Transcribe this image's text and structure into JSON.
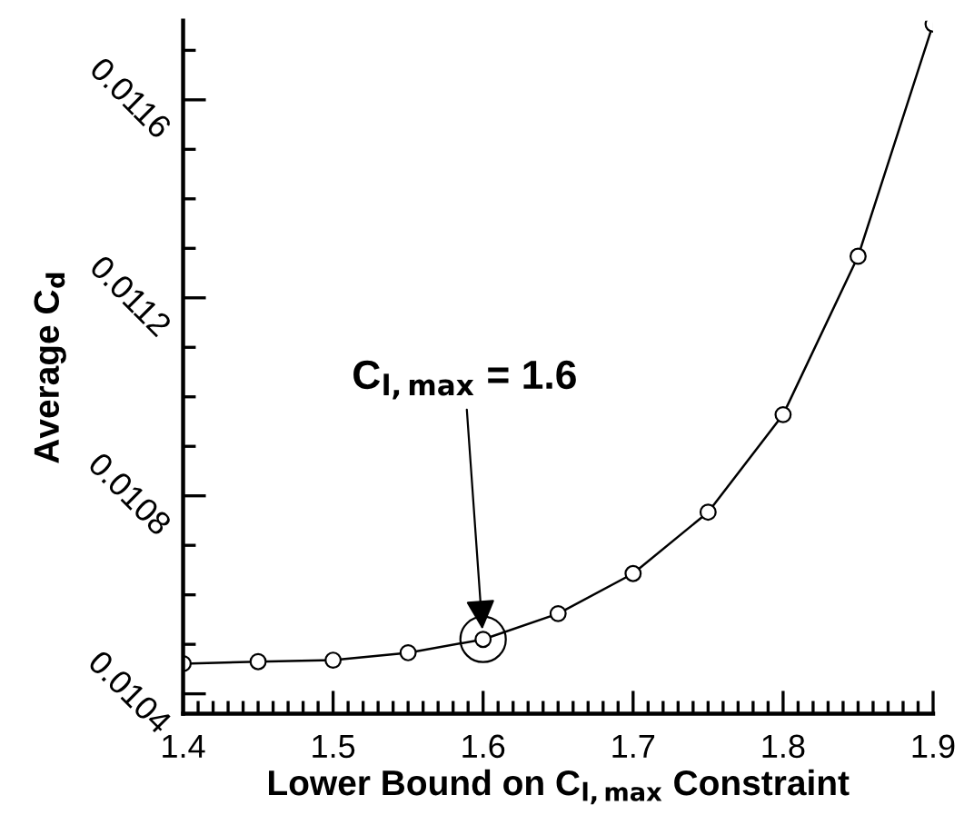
{
  "chart_data": {
    "type": "line",
    "xlabel": "Lower Bound on C$_{l,max}$ Constraint",
    "ylabel": "Average C$_{d}$",
    "x": [
      1.4,
      1.45,
      1.5,
      1.55,
      1.6,
      1.65,
      1.7,
      1.75,
      1.8,
      1.85,
      1.9
    ],
    "series": [
      {
        "color": "#000000",
        "values": [
          0.010461,
          0.010465,
          0.010468,
          0.010483,
          0.01051,
          0.010562,
          0.010643,
          0.010767,
          0.010964,
          0.011284,
          0.011753
        ]
      }
    ],
    "xlim": [
      1.4,
      1.9
    ],
    "xticks": [
      1.4,
      1.5,
      1.6,
      1.7,
      1.8,
      1.9
    ],
    "ylim": [
      0.01036,
      0.01176
    ],
    "yticks": [
      0.0104,
      0.0108,
      0.0112,
      0.0116
    ],
    "marker": "circle",
    "line_style": "solid",
    "grid": false,
    "legend": false,
    "annotations": [
      {
        "text": "C$_{l,max}$ = 1.6",
        "x": 1.6,
        "y": 0.01051
      }
    ]
  }
}
